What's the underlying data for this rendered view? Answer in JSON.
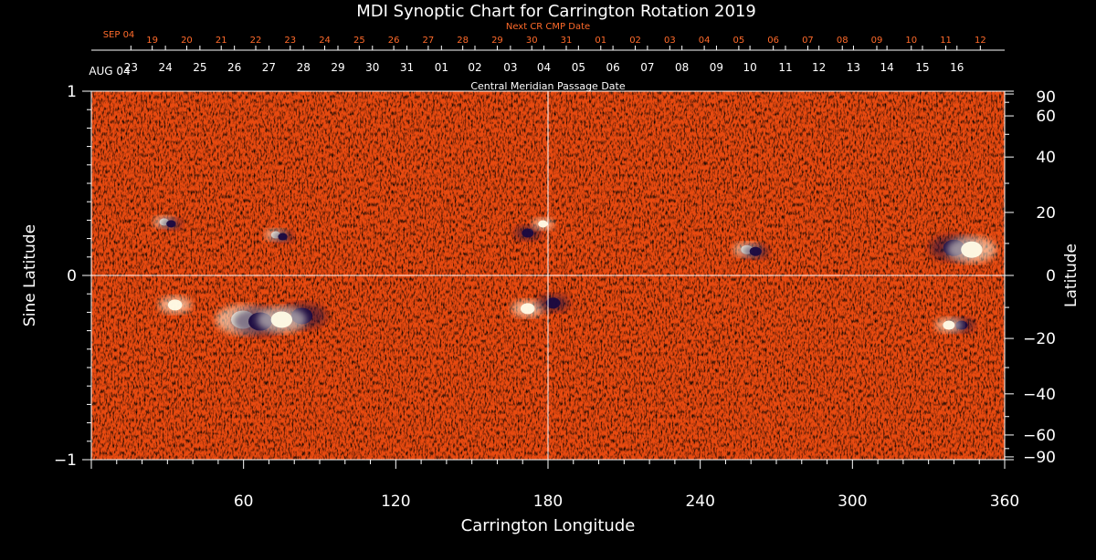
{
  "chart_data": {
    "type": "heatmap",
    "title": "MDI Synoptic Chart for Carrington Rotation 2019",
    "xlabel": "Carrington Longitude",
    "ylabel_left": "Sine Latitude",
    "ylabel_right": "Latitude",
    "xlim": [
      0,
      360
    ],
    "ylim": [
      -1,
      1
    ],
    "x_ticks": [
      60,
      120,
      180,
      240,
      300,
      360
    ],
    "y_ticks_left": [
      {
        "label": "1",
        "value": 1
      },
      {
        "label": "0",
        "value": 0
      },
      {
        "label": "−1",
        "value": -1
      }
    ],
    "y_ticks_right": [
      {
        "label": "90",
        "lat": 90
      },
      {
        "label": "60",
        "lat": 60
      },
      {
        "label": "40",
        "lat": 40
      },
      {
        "label": "20",
        "lat": 20
      },
      {
        "label": "0",
        "lat": 0
      },
      {
        "label": "−20",
        "lat": -20
      },
      {
        "label": "−40",
        "lat": -40
      },
      {
        "label": "−60",
        "lat": -60
      },
      {
        "label": "−90",
        "lat": -90
      }
    ],
    "cmp_axis": {
      "label": "Central Meridian Passage Date",
      "start_label": "AUG 04",
      "tick_dates": [
        "16",
        "15",
        "14",
        "13",
        "12",
        "11",
        "10",
        "09",
        "08",
        "07",
        "06",
        "05",
        "04",
        "03",
        "02",
        "01",
        "31",
        "30",
        "29",
        "28",
        "27",
        "26",
        "25",
        "24",
        "23"
      ],
      "tick_longitudes": [
        341.2,
        327.6,
        313.6,
        300.4,
        286.8,
        273.6,
        259.6,
        246.4,
        232.8,
        219.2,
        205.6,
        192.0,
        178.4,
        165.2,
        151.2,
        138.0,
        124.4,
        110.8,
        97.2,
        83.6,
        70.0,
        56.4,
        42.8,
        29.2,
        15.6
      ]
    },
    "next_cr_axis": {
      "label": "Next CR CMP Date",
      "start_label": "SEP 04",
      "tick_dates": [
        "12",
        "11",
        "10",
        "09",
        "08",
        "07",
        "06",
        "05",
        "04",
        "03",
        "02",
        "01",
        "31",
        "30",
        "29",
        "28",
        "27",
        "26",
        "25",
        "24",
        "23",
        "22",
        "21",
        "20",
        "19"
      ],
      "tick_longitudes": [
        350.4,
        336.8,
        323.2,
        309.6,
        296.0,
        282.4,
        268.8,
        255.2,
        241.6,
        228.0,
        214.4,
        200.8,
        187.2,
        173.6,
        160.0,
        146.4,
        132.8,
        119.2,
        105.6,
        92.0,
        78.4,
        64.8,
        51.2,
        37.6,
        24.0
      ]
    },
    "reference_lines": {
      "x": 180,
      "y": 0
    },
    "features": [
      {
        "lon": 63,
        "sinlat": -0.24,
        "polarity": "mixed",
        "strength": 1.0
      },
      {
        "lon": 83,
        "sinlat": -0.22,
        "polarity": "negative",
        "strength": 0.9
      },
      {
        "lon": 75,
        "sinlat": -0.24,
        "polarity": "positive",
        "strength": 0.9
      },
      {
        "lon": 33,
        "sinlat": -0.16,
        "polarity": "positive",
        "strength": 0.6
      },
      {
        "lon": 172,
        "sinlat": -0.18,
        "polarity": "positive",
        "strength": 0.6
      },
      {
        "lon": 182,
        "sinlat": -0.15,
        "polarity": "negative",
        "strength": 0.6
      },
      {
        "lon": 340,
        "sinlat": 0.15,
        "polarity": "negative",
        "strength": 0.9
      },
      {
        "lon": 347,
        "sinlat": 0.14,
        "polarity": "positive",
        "strength": 0.9
      },
      {
        "lon": 343,
        "sinlat": -0.27,
        "polarity": "negative",
        "strength": 0.5
      },
      {
        "lon": 338,
        "sinlat": -0.27,
        "polarity": "positive",
        "strength": 0.5
      },
      {
        "lon": 172,
        "sinlat": 0.23,
        "polarity": "negative",
        "strength": 0.5
      },
      {
        "lon": 178,
        "sinlat": 0.28,
        "polarity": "positive",
        "strength": 0.4
      },
      {
        "lon": 260,
        "sinlat": 0.14,
        "polarity": "mixed",
        "strength": 0.5
      },
      {
        "lon": 30,
        "sinlat": 0.29,
        "polarity": "mixed",
        "strength": 0.4
      },
      {
        "lon": 74,
        "sinlat": 0.22,
        "polarity": "mixed",
        "strength": 0.4
      }
    ]
  },
  "colors": {
    "background": "#000000",
    "field_base": "#e84a10",
    "positive": "#fffbe6",
    "negative": "#1a0a40",
    "axis": "#ffffff",
    "next_cr": "#ff6a2a",
    "gridline": "#ffffff"
  }
}
